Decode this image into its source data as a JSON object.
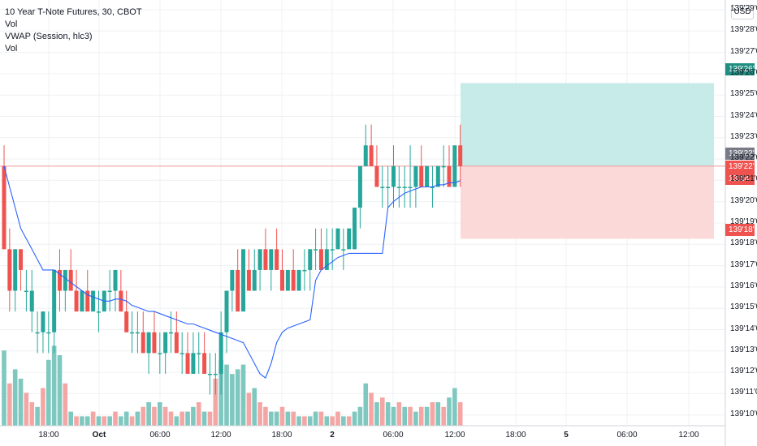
{
  "legend": {
    "symbol": "10 Year T-Note Futures, 30, CBOT",
    "study1": "Vol",
    "study2": "VWAP (Session, hlc3)",
    "study3": "Vol"
  },
  "currency": "USD",
  "colors": {
    "up": "#26a69a",
    "down": "#ef5350",
    "vwap": "#2962ff",
    "target_zone": "#c7ebe8",
    "stop_zone": "#fcd9d9",
    "grid": "#eef0f3"
  },
  "chart_data": {
    "type": "candlestick",
    "price_axis_labels": [
      "139'29'0",
      "139'28'0",
      "139'27'0",
      "139'26'0",
      "139'25'0",
      "139'24'0",
      "139'23'0",
      "139'22'0",
      "139'21'0",
      "139'20'0",
      "139'19'0",
      "139'18'0",
      "139'17'0",
      "139'16'0",
      "139'15'0",
      "139'14'0",
      "139'13'0",
      "139'12'0",
      "139'11'0",
      "139'10'0"
    ],
    "time_axis_labels": [
      "18:00",
      "Oct",
      "06:00",
      "12:00",
      "18:00",
      "2",
      "06:00",
      "12:00",
      "18:00",
      "5",
      "06:00",
      "12:00"
    ],
    "price_ylim": [
      139.095,
      139.3
    ],
    "last_price_label": "139'22'0",
    "countdown": "13:14",
    "target_label": "139'26'0",
    "stop_label": "139'18'5",
    "position": {
      "entry": 139.22,
      "target": 139.26,
      "stop": 139.185
    },
    "candles": [
      [
        139.22,
        139.23,
        139.18,
        139.18
      ],
      [
        139.18,
        139.19,
        139.15,
        139.16
      ],
      [
        139.16,
        139.18,
        139.15,
        139.18
      ],
      [
        139.18,
        139.18,
        139.16,
        139.17
      ],
      [
        139.16,
        139.17,
        139.15,
        139.16
      ],
      [
        139.15,
        139.17,
        139.14,
        139.16
      ],
      [
        139.14,
        139.15,
        139.13,
        139.14
      ],
      [
        139.14,
        139.15,
        139.13,
        139.15
      ],
      [
        139.14,
        139.15,
        139.13,
        139.14
      ],
      [
        139.14,
        139.17,
        139.13,
        139.17
      ],
      [
        139.17,
        139.18,
        139.15,
        139.16
      ],
      [
        139.16,
        139.17,
        139.15,
        139.17
      ],
      [
        139.17,
        139.18,
        139.16,
        139.16
      ],
      [
        139.16,
        139.17,
        139.15,
        139.15
      ],
      [
        139.15,
        139.16,
        139.15,
        139.16
      ],
      [
        139.16,
        139.17,
        139.15,
        139.15
      ],
      [
        139.15,
        139.16,
        139.15,
        139.16
      ],
      [
        139.15,
        139.16,
        139.14,
        139.15
      ],
      [
        139.15,
        139.16,
        139.15,
        139.16
      ],
      [
        139.16,
        139.17,
        139.15,
        139.16
      ],
      [
        139.16,
        139.17,
        139.15,
        139.17
      ],
      [
        139.16,
        139.17,
        139.15,
        139.15
      ],
      [
        139.15,
        139.16,
        139.14,
        139.14
      ],
      [
        139.14,
        139.15,
        139.13,
        139.14
      ],
      [
        139.14,
        139.15,
        139.13,
        139.14
      ],
      [
        139.14,
        139.15,
        139.13,
        139.13
      ],
      [
        139.13,
        139.14,
        139.12,
        139.14
      ],
      [
        139.14,
        139.15,
        139.13,
        139.13
      ],
      [
        139.13,
        139.14,
        139.12,
        139.13
      ],
      [
        139.13,
        139.14,
        139.12,
        139.14
      ],
      [
        139.14,
        139.15,
        139.13,
        139.14
      ],
      [
        139.14,
        139.15,
        139.13,
        139.13
      ],
      [
        139.13,
        139.14,
        139.12,
        139.13
      ],
      [
        139.13,
        139.14,
        139.12,
        139.12
      ],
      [
        139.12,
        139.14,
        139.12,
        139.13
      ],
      [
        139.13,
        139.14,
        139.12,
        139.13
      ],
      [
        139.13,
        139.14,
        139.12,
        139.12
      ],
      [
        139.12,
        139.13,
        139.11,
        139.12
      ],
      [
        139.12,
        139.13,
        139.11,
        139.12
      ],
      [
        139.12,
        139.15,
        139.11,
        139.14
      ],
      [
        139.14,
        139.16,
        139.13,
        139.16
      ],
      [
        139.16,
        139.17,
        139.15,
        139.17
      ],
      [
        139.17,
        139.18,
        139.15,
        139.15
      ],
      [
        139.15,
        139.18,
        139.15,
        139.18
      ],
      [
        139.17,
        139.18,
        139.16,
        139.16
      ],
      [
        139.16,
        139.18,
        139.16,
        139.17
      ],
      [
        139.17,
        139.18,
        139.16,
        139.18
      ],
      [
        139.18,
        139.19,
        139.17,
        139.17
      ],
      [
        139.17,
        139.18,
        139.16,
        139.18
      ],
      [
        139.18,
        139.19,
        139.17,
        139.17
      ],
      [
        139.17,
        139.18,
        139.16,
        139.16
      ],
      [
        139.16,
        139.17,
        139.16,
        139.17
      ],
      [
        139.17,
        139.18,
        139.16,
        139.16
      ],
      [
        139.16,
        139.17,
        139.16,
        139.17
      ],
      [
        139.17,
        139.18,
        139.16,
        139.17
      ],
      [
        139.17,
        139.18,
        139.16,
        139.18
      ],
      [
        139.18,
        139.19,
        139.17,
        139.18
      ],
      [
        139.18,
        139.19,
        139.17,
        139.17
      ],
      [
        139.17,
        139.19,
        139.17,
        139.18
      ],
      [
        139.18,
        139.19,
        139.17,
        139.18
      ],
      [
        139.18,
        139.19,
        139.18,
        139.19
      ],
      [
        139.18,
        139.19,
        139.17,
        139.18
      ],
      [
        139.18,
        139.19,
        139.18,
        139.19
      ],
      [
        139.18,
        139.2,
        139.18,
        139.2
      ],
      [
        139.2,
        139.22,
        139.19,
        139.22
      ],
      [
        139.22,
        139.24,
        139.22,
        139.23
      ],
      [
        139.23,
        139.24,
        139.22,
        139.22
      ],
      [
        139.22,
        139.23,
        139.21,
        139.21
      ],
      [
        139.21,
        139.22,
        139.2,
        139.21
      ],
      [
        139.21,
        139.22,
        139.2,
        139.21
      ],
      [
        139.21,
        139.23,
        139.2,
        139.22
      ],
      [
        139.21,
        139.22,
        139.2,
        139.21
      ],
      [
        139.21,
        139.22,
        139.2,
        139.21
      ],
      [
        139.21,
        139.23,
        139.2,
        139.21
      ],
      [
        139.21,
        139.22,
        139.2,
        139.22
      ],
      [
        139.22,
        139.23,
        139.21,
        139.21
      ],
      [
        139.21,
        139.22,
        139.21,
        139.22
      ],
      [
        139.21,
        139.22,
        139.2,
        139.21
      ],
      [
        139.21,
        139.22,
        139.21,
        139.22
      ],
      [
        139.22,
        139.23,
        139.21,
        139.22
      ],
      [
        139.22,
        139.23,
        139.21,
        139.21
      ],
      [
        139.21,
        139.23,
        139.21,
        139.23
      ],
      [
        139.23,
        139.24,
        139.21,
        139.22
      ]
    ],
    "vwap": [
      139.22,
      139.21,
      139.2,
      139.19,
      139.185,
      139.18,
      139.175,
      139.17,
      139.17,
      139.17,
      139.168,
      139.166,
      139.164,
      139.162,
      139.16,
      139.158,
      139.157,
      139.156,
      139.155,
      139.155,
      139.156,
      139.156,
      139.155,
      139.153,
      139.152,
      139.151,
      139.15,
      139.15,
      139.149,
      139.148,
      139.147,
      139.146,
      139.145,
      139.144,
      139.144,
      139.143,
      139.142,
      139.141,
      139.14,
      139.139,
      139.138,
      139.137,
      139.136,
      139.135,
      139.13,
      139.125,
      139.12,
      139.118,
      139.125,
      139.135,
      139.14,
      139.142,
      139.143,
      139.144,
      139.145,
      139.146,
      139.165,
      139.17,
      139.172,
      139.174,
      139.176,
      139.177,
      139.178,
      139.178,
      139.178,
      139.178,
      139.178,
      139.178,
      139.178,
      139.2,
      139.203,
      139.205,
      139.207,
      139.208,
      139.209,
      139.21,
      139.21,
      139.21,
      139.211,
      139.211,
      139.212,
      139.212,
      139.213
    ],
    "volume": [
      16,
      9,
      12,
      10,
      7,
      5,
      4,
      8,
      14,
      17,
      15,
      9,
      3,
      2,
      2,
      2,
      3,
      2,
      2,
      2,
      3,
      2,
      3,
      2,
      3,
      4,
      5,
      4,
      5,
      4,
      3,
      2,
      3,
      3,
      4,
      5,
      3,
      3,
      10,
      14,
      13,
      11,
      12,
      13,
      7,
      8,
      5,
      4,
      3,
      3,
      4,
      3,
      3,
      2,
      2,
      2,
      3,
      3,
      2,
      2,
      3,
      2,
      2,
      3,
      4,
      9,
      7,
      5,
      6,
      5,
      4,
      5,
      4,
      4,
      3,
      4,
      4,
      5,
      5,
      4,
      6,
      8,
      5
    ],
    "volume_colors": [
      0,
      1,
      0,
      0,
      1,
      1,
      0,
      1,
      0,
      0,
      0,
      1,
      0,
      1,
      0,
      0,
      1,
      0,
      1,
      0,
      1,
      0,
      0,
      1,
      0,
      1,
      0,
      1,
      0,
      1,
      1,
      0,
      1,
      0,
      0,
      1,
      0,
      1,
      1,
      0,
      0,
      0,
      0,
      0,
      1,
      0,
      1,
      1,
      0,
      0,
      1,
      0,
      1,
      0,
      1,
      0,
      0,
      1,
      0,
      1,
      1,
      0,
      1,
      0,
      0,
      0,
      1,
      0,
      1,
      0,
      0,
      1,
      0,
      1,
      0,
      1,
      0,
      1,
      0,
      1,
      0,
      0,
      1
    ]
  }
}
